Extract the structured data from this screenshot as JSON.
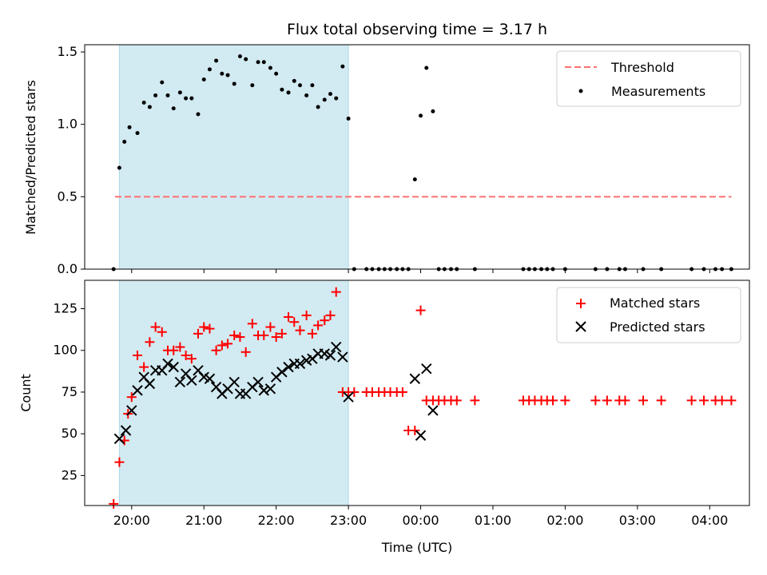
{
  "chart_data": {
    "type": "scatter",
    "title": "Flux total observing time = 3.17 h",
    "xlabel": "Time (UTC)",
    "xticks": [
      "20:00",
      "21:00",
      "22:00",
      "23:00",
      "00:00",
      "01:00",
      "02:00",
      "03:00",
      "04:00"
    ],
    "xlim": [
      -0.65,
      8.55
    ],
    "shaded_region": {
      "x0": -0.17,
      "x1": 3.0,
      "color": "#add8e6"
    },
    "panels": [
      {
        "ylabel": "Matched/Predicted stars",
        "ylim": [
          0,
          1.55
        ],
        "yticks": [
          "0.0",
          "0.5",
          "1.0",
          "1.5"
        ],
        "ytick_values": [
          0,
          0.5,
          1.0,
          1.5
        ],
        "legend_position": "upper right",
        "threshold": {
          "name": "Threshold",
          "y": 0.5,
          "x0": -0.23,
          "x1": 8.3,
          "color": "#ff7070"
        },
        "series": [
          {
            "name": "Measurements",
            "marker": "dot",
            "color": "#000000",
            "x": [
              -0.25,
              -0.17,
              -0.1,
              -0.03,
              0.08,
              0.17,
              0.25,
              0.33,
              0.42,
              0.5,
              0.58,
              0.67,
              0.75,
              0.83,
              0.92,
              1.0,
              1.08,
              1.17,
              1.25,
              1.33,
              1.42,
              1.5,
              1.58,
              1.67,
              1.75,
              1.83,
              1.92,
              2.0,
              2.08,
              2.17,
              2.25,
              2.33,
              2.42,
              2.5,
              2.58,
              2.67,
              2.75,
              2.83,
              2.92,
              3.0,
              3.08,
              3.25,
              3.33,
              3.42,
              3.5,
              3.58,
              3.67,
              3.75,
              3.83,
              3.92,
              4.0,
              4.08,
              4.17,
              4.25,
              4.33,
              4.42,
              4.5,
              4.75,
              5.42,
              5.5,
              5.58,
              5.67,
              5.75,
              5.83,
              6.0,
              6.42,
              6.58,
              6.75,
              6.83,
              7.08,
              7.33,
              7.75,
              7.92,
              8.08,
              8.17,
              8.3
            ],
            "y": [
              0,
              0.7,
              0.88,
              0.98,
              0.94,
              1.15,
              1.12,
              1.2,
              1.29,
              1.2,
              1.11,
              1.22,
              1.18,
              1.18,
              1.07,
              1.31,
              1.38,
              1.44,
              1.35,
              1.34,
              1.28,
              1.47,
              1.45,
              1.27,
              1.43,
              1.43,
              1.39,
              1.35,
              1.24,
              1.22,
              1.3,
              1.27,
              1.2,
              1.27,
              1.12,
              1.17,
              1.21,
              1.18,
              1.4,
              1.04,
              0,
              0,
              0,
              0,
              0,
              0,
              0,
              0,
              0,
              0.62,
              1.06,
              1.39,
              1.09,
              0,
              0,
              0,
              0,
              0,
              0,
              0,
              0,
              0,
              0,
              0,
              0,
              0,
              0,
              0,
              0,
              0,
              0,
              0,
              0,
              0,
              0,
              0
            ]
          }
        ]
      },
      {
        "ylabel": "Count",
        "ylim": [
          7,
          142
        ],
        "yticks": [
          "25",
          "50",
          "75",
          "100",
          "125"
        ],
        "ytick_values": [
          25,
          50,
          75,
          100,
          125
        ],
        "legend_position": "upper right",
        "series": [
          {
            "name": "Matched stars",
            "marker": "plus",
            "color": "#ff0000",
            "x": [
              -0.25,
              -0.17,
              -0.1,
              -0.05,
              0.0,
              0.08,
              0.17,
              0.25,
              0.33,
              0.42,
              0.5,
              0.58,
              0.67,
              0.75,
              0.83,
              0.92,
              1.0,
              1.08,
              1.17,
              1.25,
              1.33,
              1.42,
              1.5,
              1.58,
              1.67,
              1.75,
              1.83,
              1.92,
              2.0,
              2.08,
              2.17,
              2.25,
              2.33,
              2.42,
              2.5,
              2.58,
              2.67,
              2.75,
              2.83,
              2.92,
              3.0,
              3.08,
              3.25,
              3.33,
              3.42,
              3.5,
              3.58,
              3.67,
              3.75,
              3.83,
              3.92,
              4.0,
              4.08,
              4.17,
              4.25,
              4.33,
              4.42,
              4.5,
              4.75,
              5.42,
              5.5,
              5.58,
              5.67,
              5.75,
              5.83,
              6.0,
              6.42,
              6.58,
              6.75,
              6.83,
              7.08,
              7.33,
              7.75,
              7.92,
              8.08,
              8.17,
              8.3
            ],
            "y": [
              8,
              33,
              46,
              62,
              72,
              97,
              90,
              105,
              114,
              111,
              100,
              100,
              102,
              97,
              95,
              110,
              114,
              113,
              100,
              103,
              104,
              109,
              108,
              99,
              116,
              109,
              109,
              114,
              108,
              110,
              120,
              117,
              112,
              121,
              110,
              115,
              118,
              121,
              135,
              75,
              75,
              75,
              75,
              75,
              75,
              75,
              75,
              75,
              75,
              52,
              52,
              124,
              70,
              70,
              70,
              70,
              70,
              70,
              70,
              70,
              70,
              70,
              70,
              70,
              70,
              70,
              70,
              70,
              70,
              70,
              70,
              70,
              70,
              70,
              70,
              70,
              70
            ]
          },
          {
            "name": "Predicted stars",
            "marker": "x",
            "color": "#000000",
            "x": [
              -0.17,
              -0.08,
              0.0,
              0.08,
              0.17,
              0.25,
              0.33,
              0.42,
              0.5,
              0.58,
              0.67,
              0.75,
              0.83,
              0.92,
              1.0,
              1.08,
              1.17,
              1.25,
              1.33,
              1.42,
              1.5,
              1.58,
              1.67,
              1.75,
              1.83,
              1.92,
              2.0,
              2.08,
              2.17,
              2.25,
              2.33,
              2.42,
              2.5,
              2.58,
              2.67,
              2.75,
              2.83,
              2.92,
              3.0,
              3.92,
              4.0,
              4.08,
              4.17
            ],
            "y": [
              47,
              52,
              64,
              76,
              84,
              80,
              88,
              88,
              92,
              90,
              81,
              86,
              82,
              88,
              84,
              83,
              78,
              74,
              77,
              81,
              74,
              74,
              78,
              81,
              76,
              77,
              84,
              87,
              90,
              92,
              92,
              94,
              95,
              98,
              98,
              97,
              102,
              96,
              72,
              83,
              49,
              89,
              64
            ]
          }
        ]
      }
    ]
  }
}
